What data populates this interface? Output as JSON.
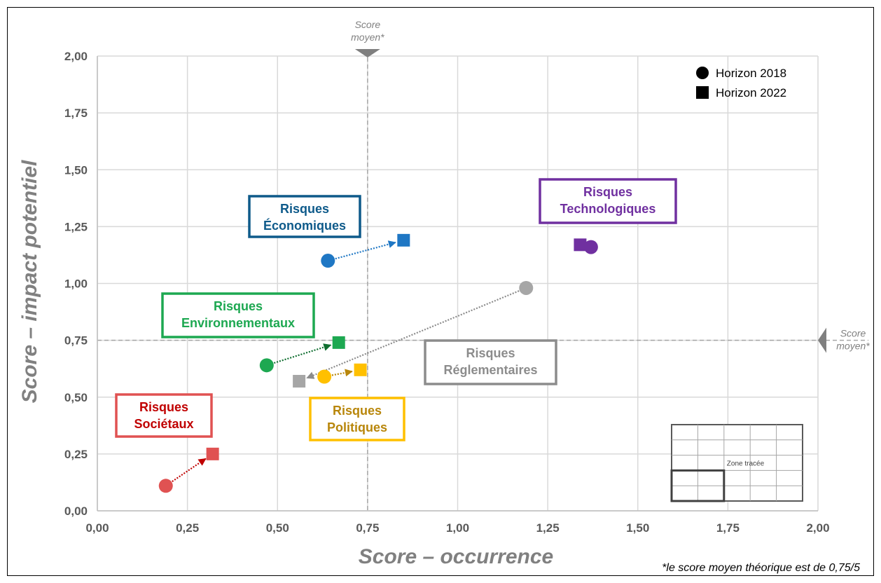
{
  "chart_data": {
    "type": "scatter",
    "xlabel": "Score – occurrence",
    "ylabel": "Score – impact potentiel",
    "xlim": [
      0,
      2
    ],
    "ylim": [
      0,
      2
    ],
    "grid": true,
    "x_ticks": [
      "0,00",
      "0,25",
      "0,50",
      "0,75",
      "1,00",
      "1,25",
      "1,50",
      "1,75",
      "2,00"
    ],
    "y_ticks": [
      "0,00",
      "0,25",
      "0,50",
      "0,75",
      "1,00",
      "1,25",
      "1,50",
      "1,75",
      "2,00"
    ],
    "reference_lines": {
      "x": 0.75,
      "y": 0.75,
      "label_line1": "Score",
      "label_line2": "moyen*"
    },
    "legend": {
      "position": "top-right",
      "entries": [
        {
          "label": "Horizon 2018",
          "marker": "circle"
        },
        {
          "label": "Horizon 2022",
          "marker": "square"
        }
      ]
    },
    "series": [
      {
        "name": "Risques Économiques",
        "label_lines": [
          "Risques",
          "Économiques"
        ],
        "color": "#1F77C4",
        "box_color": "#0E5A8A",
        "points": {
          "2018": [
            0.64,
            1.1
          ],
          "2022": [
            0.85,
            1.19
          ]
        }
      },
      {
        "name": "Risques Technologiques",
        "label_lines": [
          "Risques",
          "Technologiques"
        ],
        "color": "#7030A0",
        "box_color": "#7030A0",
        "points": {
          "2018": [
            1.37,
            1.16
          ],
          "2022": [
            1.34,
            1.17
          ]
        }
      },
      {
        "name": "Risques Environnementaux",
        "label_lines": [
          "Risques",
          "Environnementaux"
        ],
        "color": "#1DA851",
        "box_color": "#1DA851",
        "points": {
          "2018": [
            0.47,
            0.64
          ],
          "2022": [
            0.67,
            0.74
          ]
        }
      },
      {
        "name": "Risques Réglementaires",
        "label_lines": [
          "Risques",
          "Réglementaires"
        ],
        "color": "#A6A6A6",
        "box_color": "#8C8C8C",
        "points": {
          "2018": [
            1.19,
            0.98
          ],
          "2022": [
            0.56,
            0.57
          ]
        }
      },
      {
        "name": "Risques Politiques",
        "label_lines": [
          "Risques",
          "Politiques"
        ],
        "color": "#FFC000",
        "box_color": "#FFC000",
        "text_color": "#B8860B",
        "points": {
          "2018": [
            0.63,
            0.59
          ],
          "2022": [
            0.73,
            0.62
          ]
        }
      },
      {
        "name": "Risques Sociétaux",
        "label_lines": [
          "Risques",
          "Sociétaux"
        ],
        "color": "#E05252",
        "box_color": "#E05252",
        "text_color": "#C00000",
        "points": {
          "2018": [
            0.19,
            0.11
          ],
          "2022": [
            0.32,
            0.25
          ]
        }
      }
    ],
    "inset_label": "Zone tracée",
    "footnote": "*le score moyen théorique est de 0,75/5"
  }
}
